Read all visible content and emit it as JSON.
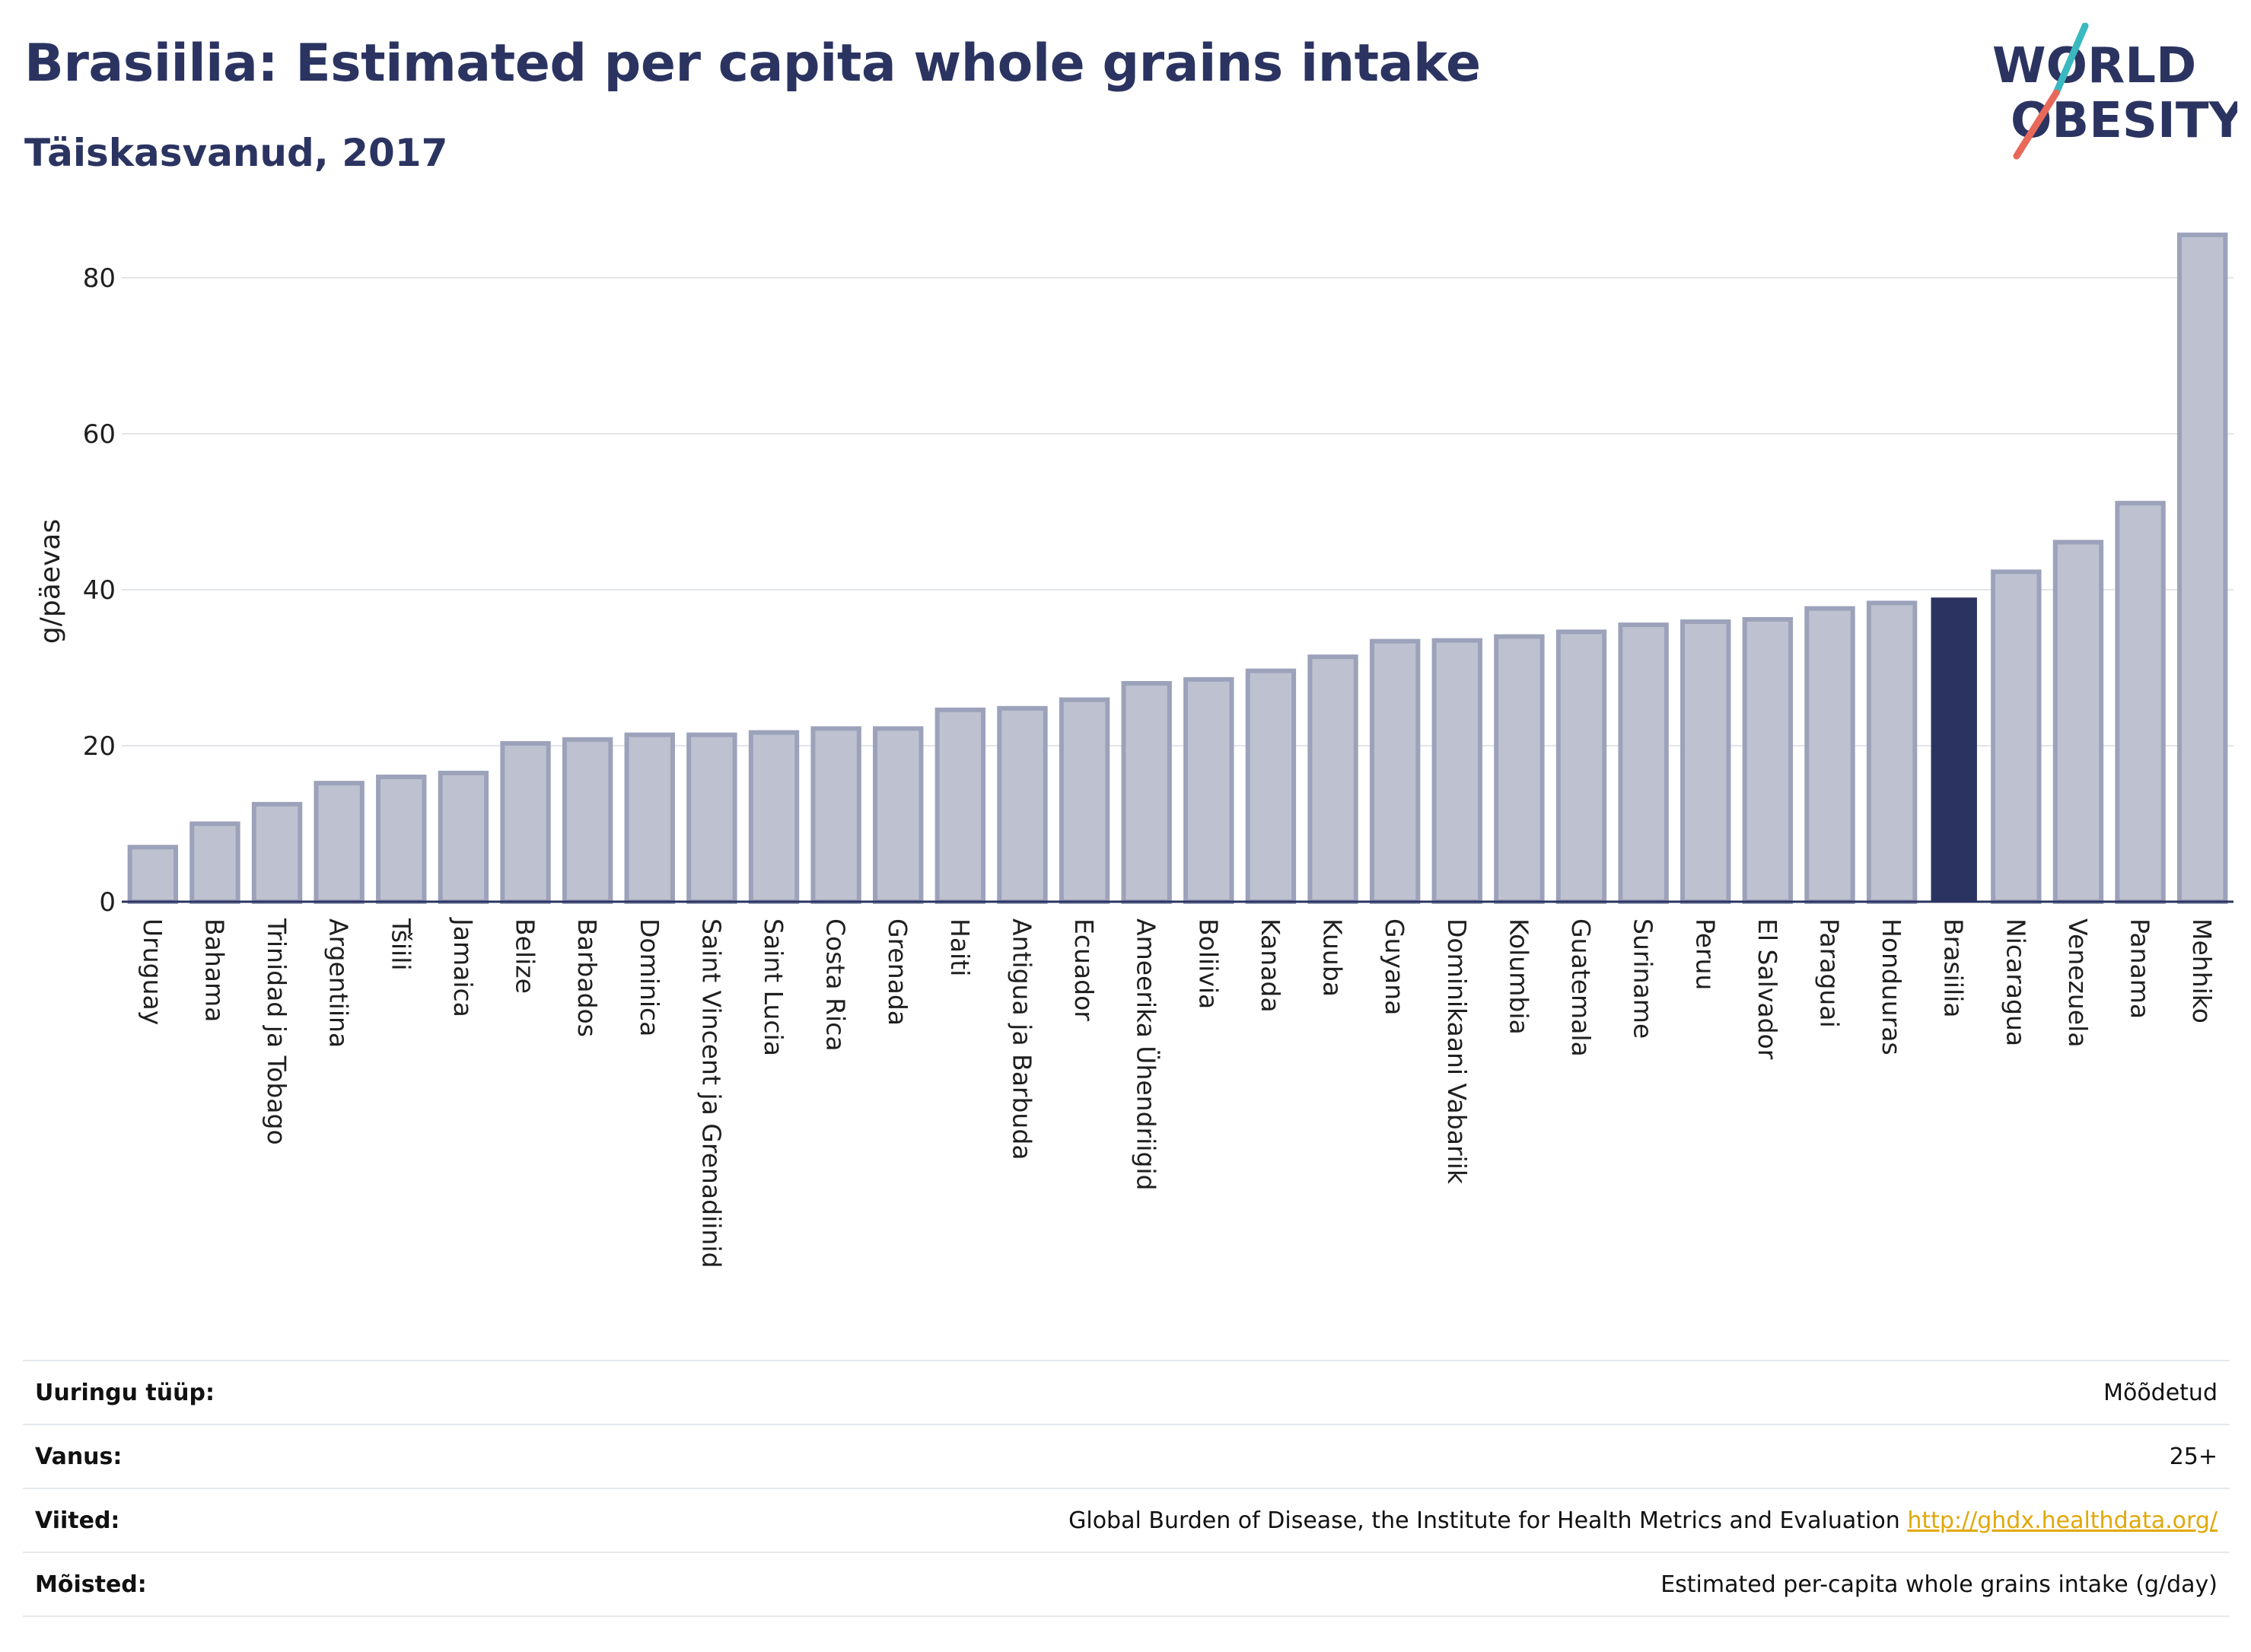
{
  "header": {
    "title": "Brasiilia: Estimated per capita whole grains intake",
    "subtitle": "Täiskasvanud, 2017"
  },
  "logo": {
    "line1": "WORLD",
    "line2": "OBESITY",
    "accent_teal": "#3ab9c1",
    "accent_red": "#e8685a",
    "text_color": "#2b3461"
  },
  "colors": {
    "bar": "#bec2d0",
    "bar_border": "#9ca2ba",
    "highlight": "#2b3461",
    "grid": "#e3e5ea",
    "axis": "#2b3461"
  },
  "chart_data": {
    "type": "bar",
    "ylabel": "g/päevas",
    "ylim": [
      0,
      88
    ],
    "yticks": [
      0,
      20,
      40,
      60,
      80
    ],
    "grid": true,
    "highlight": "Brasiilia",
    "categories": [
      "Uruguay",
      "Bahama",
      "Trinidad ja Tobago",
      "Argentiina",
      "Tšiili",
      "Jamaica",
      "Belize",
      "Barbados",
      "Dominica",
      "Saint Vincent ja Grenadiinid",
      "Saint Lucia",
      "Costa Rica",
      "Grenada",
      "Haiti",
      "Antigua ja Barbuda",
      "Ecuador",
      "Ameerika Ühendriigid",
      "Boliivia",
      "Kanada",
      "Kuuba",
      "Guyana",
      "Dominikaani Vabariik",
      "Kolumbia",
      "Guatemala",
      "Suriname",
      "Peruu",
      "El Salvador",
      "Paraguai",
      "Honduuras",
      "Brasiilia",
      "Nicaragua",
      "Venezuela",
      "Panama",
      "Mehhiko"
    ],
    "values": [
      7.0,
      10.0,
      12.5,
      15.2,
      16.0,
      16.5,
      20.3,
      20.8,
      21.4,
      21.4,
      21.7,
      22.2,
      22.2,
      24.6,
      24.8,
      25.9,
      28.0,
      28.5,
      29.6,
      31.4,
      33.4,
      33.5,
      34.0,
      34.6,
      35.5,
      35.9,
      36.2,
      37.6,
      38.3,
      39.0,
      42.3,
      46.1,
      51.1,
      85.5
    ]
  },
  "footer": {
    "rows": [
      {
        "key": "Uuringu tüüp:",
        "value": "Mõõdetud"
      },
      {
        "key": "Vanus:",
        "value": "25+"
      },
      {
        "key": "Viited:",
        "value": "Global Burden of Disease, the Institute for Health Metrics and Evaluation",
        "link": "http://ghdx.healthdata.org/"
      },
      {
        "key": "Mõisted:",
        "value": "Estimated per-capita whole grains intake (g/day)"
      }
    ]
  }
}
